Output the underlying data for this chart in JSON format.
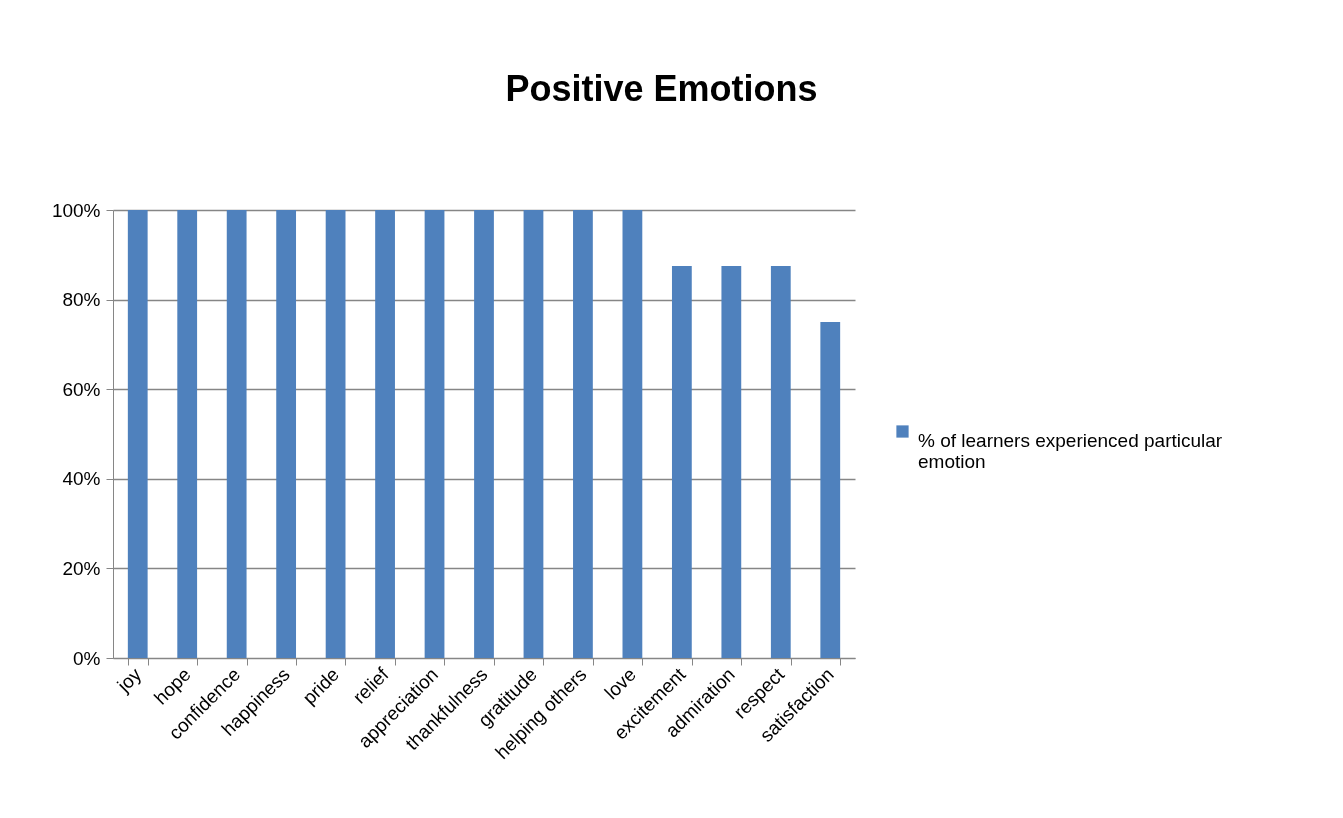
{
  "chart_data": {
    "type": "bar",
    "title": "Positive Emotions",
    "categories": [
      "joy",
      "hope",
      "confidence",
      "happiness",
      "pride",
      "relief",
      "appreciation",
      "thankfulness",
      "gratitude",
      "helping others",
      "love",
      "excitement",
      "admiration",
      "respect",
      "satisfaction"
    ],
    "series": [
      {
        "name": "% of learners experienced particular emotion",
        "color": "#4f81bd",
        "values": [
          100,
          100,
          100,
          100,
          100,
          100,
          100,
          100,
          100,
          100,
          100,
          87.5,
          87.5,
          87.5,
          75
        ]
      }
    ],
    "ylim": [
      0,
      100
    ],
    "yticks": [
      {
        "value": 0,
        "label": "0%"
      },
      {
        "value": 20,
        "label": "20%"
      },
      {
        "value": 40,
        "label": "40%"
      },
      {
        "value": 60,
        "label": "60%"
      },
      {
        "value": 80,
        "label": "80%"
      },
      {
        "value": 100,
        "label": "100%"
      }
    ],
    "grid": "y",
    "legend": "right"
  }
}
